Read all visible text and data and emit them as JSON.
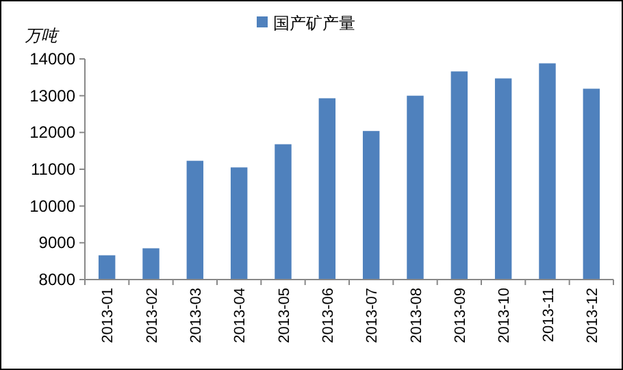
{
  "chart_data": {
    "type": "bar",
    "ylabel": "万吨",
    "categories": [
      "2013-01",
      "2013-02",
      "2013-03",
      "2013-04",
      "2013-05",
      "2013-06",
      "2013-07",
      "2013-08",
      "2013-09",
      "2013-10",
      "2013-11",
      "2013-12"
    ],
    "series": [
      {
        "name": "国产矿产量",
        "color": "#4f81bd",
        "values": [
          8660,
          8850,
          11230,
          11050,
          11680,
          12930,
          12040,
          13000,
          13660,
          13470,
          13880,
          13190
        ]
      }
    ],
    "ylim": [
      8000,
      14000
    ],
    "yticks": [
      8000,
      9000,
      10000,
      11000,
      12000,
      13000,
      14000
    ],
    "grid": false,
    "legend": "top"
  }
}
